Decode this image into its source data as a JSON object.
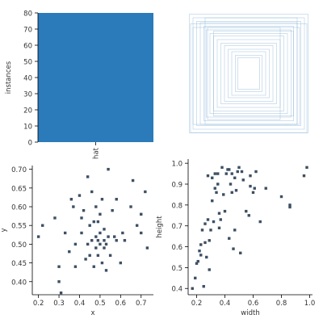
{
  "colors": {
    "bar": "#2b7bba",
    "box_stroke": "#8fb8d8",
    "point": "#3d4f63",
    "axis": "#000000",
    "text": "#333333"
  },
  "chart_data": [
    {
      "type": "bar",
      "categories": [
        "hat"
      ],
      "values": [
        80
      ],
      "title": "",
      "xlabel": "",
      "ylabel": "instances",
      "ylim": [
        0,
        80
      ],
      "yticks": [
        0,
        10,
        20,
        30,
        40,
        50,
        60,
        70,
        80
      ]
    },
    {
      "type": "boxes",
      "note": "",
      "boxes": [
        [
          0.5,
          0.5,
          0.98,
          0.98
        ],
        [
          0.5,
          0.5,
          0.92,
          0.92
        ],
        [
          0.5,
          0.5,
          0.86,
          0.86
        ],
        [
          0.5,
          0.5,
          0.8,
          0.84
        ],
        [
          0.5,
          0.5,
          0.74,
          0.78
        ],
        [
          0.5,
          0.5,
          0.7,
          0.72
        ],
        [
          0.5,
          0.5,
          0.64,
          0.66
        ],
        [
          0.5,
          0.5,
          0.58,
          0.62
        ],
        [
          0.5,
          0.5,
          0.52,
          0.56
        ],
        [
          0.5,
          0.5,
          0.46,
          0.5
        ],
        [
          0.5,
          0.5,
          0.4,
          0.46
        ],
        [
          0.5,
          0.5,
          0.34,
          0.4
        ],
        [
          0.5,
          0.5,
          0.28,
          0.36
        ],
        [
          0.5,
          0.5,
          0.22,
          0.3
        ],
        [
          0.5,
          0.5,
          0.18,
          0.26
        ],
        [
          0.48,
          0.52,
          0.88,
          0.8
        ],
        [
          0.52,
          0.48,
          0.76,
          0.88
        ],
        [
          0.46,
          0.5,
          0.6,
          0.76
        ],
        [
          0.54,
          0.5,
          0.66,
          0.7
        ],
        [
          0.5,
          0.54,
          0.96,
          0.9
        ]
      ]
    },
    {
      "type": "scatter",
      "title": "",
      "xlabel": "x",
      "ylabel": "y",
      "xlim": [
        0.17,
        0.76
      ],
      "ylim": [
        0.365,
        0.71
      ],
      "xticks": [
        0.2,
        0.3,
        0.4,
        0.5,
        0.6,
        0.7
      ],
      "yticks": [
        0.4,
        0.45,
        0.5,
        0.55,
        0.6,
        0.65,
        0.7
      ],
      "x": [
        0.2,
        0.22,
        0.28,
        0.3,
        0.3,
        0.31,
        0.33,
        0.35,
        0.36,
        0.37,
        0.38,
        0.38,
        0.4,
        0.41,
        0.41,
        0.42,
        0.43,
        0.44,
        0.44,
        0.45,
        0.45,
        0.46,
        0.46,
        0.47,
        0.47,
        0.48,
        0.48,
        0.48,
        0.49,
        0.49,
        0.49,
        0.5,
        0.5,
        0.5,
        0.51,
        0.51,
        0.52,
        0.52,
        0.52,
        0.53,
        0.53,
        0.54,
        0.54,
        0.55,
        0.56,
        0.57,
        0.58,
        0.58,
        0.6,
        0.61,
        0.62,
        0.65,
        0.66,
        0.68,
        0.7,
        0.7,
        0.72,
        0.73
      ],
      "y": [
        0.52,
        0.55,
        0.57,
        0.44,
        0.4,
        0.37,
        0.53,
        0.48,
        0.62,
        0.6,
        0.44,
        0.5,
        0.63,
        0.57,
        0.53,
        0.59,
        0.46,
        0.68,
        0.5,
        0.55,
        0.47,
        0.64,
        0.51,
        0.56,
        0.44,
        0.52,
        0.49,
        0.6,
        0.47,
        0.51,
        0.56,
        0.5,
        0.53,
        0.58,
        0.45,
        0.62,
        0.49,
        0.51,
        0.54,
        0.43,
        0.5,
        0.52,
        0.7,
        0.47,
        0.59,
        0.52,
        0.51,
        0.62,
        0.45,
        0.53,
        0.51,
        0.6,
        0.67,
        0.55,
        0.58,
        0.53,
        0.64,
        0.49
      ]
    },
    {
      "type": "scatter",
      "title": "",
      "xlabel": "width",
      "ylabel": "height",
      "xlim": [
        0.14,
        1.02
      ],
      "ylim": [
        0.37,
        1.02
      ],
      "xticks": [
        0.2,
        0.4,
        0.6,
        0.8,
        1.0
      ],
      "yticks": [
        0.4,
        0.5,
        0.6,
        0.7,
        0.8,
        0.9,
        1.0
      ],
      "x": [
        0.17,
        0.19,
        0.2,
        0.21,
        0.22,
        0.23,
        0.23,
        0.24,
        0.25,
        0.26,
        0.26,
        0.27,
        0.28,
        0.28,
        0.29,
        0.29,
        0.3,
        0.31,
        0.31,
        0.32,
        0.33,
        0.33,
        0.34,
        0.35,
        0.35,
        0.36,
        0.36,
        0.37,
        0.38,
        0.39,
        0.4,
        0.41,
        0.42,
        0.43,
        0.43,
        0.44,
        0.45,
        0.45,
        0.46,
        0.47,
        0.47,
        0.48,
        0.49,
        0.5,
        0.51,
        0.52,
        0.53,
        0.55,
        0.57,
        0.58,
        0.58,
        0.6,
        0.61,
        0.62,
        0.65,
        0.69,
        0.8,
        0.86,
        0.86,
        0.96,
        0.98
      ],
      "y": [
        0.4,
        0.45,
        0.52,
        0.53,
        0.58,
        0.56,
        0.61,
        0.68,
        0.41,
        0.71,
        0.62,
        0.55,
        0.73,
        0.94,
        0.63,
        0.49,
        0.68,
        0.93,
        0.82,
        0.72,
        0.95,
        0.88,
        0.86,
        0.95,
        0.9,
        0.69,
        0.76,
        0.73,
        0.98,
        0.85,
        0.77,
        0.95,
        0.97,
        0.64,
        0.97,
        0.9,
        0.95,
        0.86,
        0.59,
        0.93,
        0.68,
        0.87,
        0.96,
        0.98,
        0.57,
        0.96,
        0.92,
        0.77,
        0.75,
        0.89,
        0.94,
        0.86,
        0.88,
        0.96,
        0.72,
        0.88,
        0.84,
        0.79,
        0.8,
        0.94,
        0.98
      ]
    }
  ]
}
